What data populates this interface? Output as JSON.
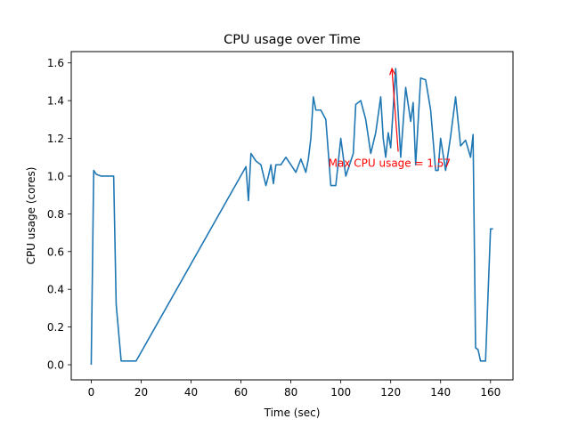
{
  "chart_data": {
    "type": "line",
    "title": "CPU usage over Time",
    "xlabel": "Time (sec)",
    "ylabel": "CPU usage (cores)",
    "xlim": [
      -8,
      169
    ],
    "ylim": [
      -0.08,
      1.66
    ],
    "xticks": [
      0,
      20,
      40,
      60,
      80,
      100,
      120,
      140,
      160
    ],
    "yticks": [
      0.0,
      0.2,
      0.4,
      0.6,
      0.8,
      1.0,
      1.2,
      1.4,
      1.6
    ],
    "ytick_labels": [
      "0.0",
      "0.2",
      "0.4",
      "0.6",
      "0.8",
      "1.0",
      "1.2",
      "1.4",
      "1.6"
    ],
    "grid": false,
    "line_color": "#1f77b4",
    "series": [
      {
        "x": [
          0,
          1,
          2,
          4,
          6,
          8,
          9,
          10,
          12,
          14,
          16,
          18,
          62,
          63,
          64,
          66,
          68,
          70,
          71,
          72,
          73,
          74,
          76,
          78,
          80,
          82,
          84,
          86,
          87,
          88,
          89,
          90,
          92,
          94,
          96,
          98,
          100,
          102,
          104,
          105,
          106,
          108,
          110,
          112,
          114,
          116,
          117,
          118,
          119,
          120,
          122,
          124,
          126,
          128,
          129,
          130,
          132,
          134,
          136,
          138,
          139,
          140,
          142,
          144,
          146,
          148,
          150,
          152,
          153,
          154,
          155,
          156,
          158,
          160,
          161
        ],
        "y": [
          0.0,
          1.03,
          1.01,
          1.0,
          1.0,
          1.0,
          1.0,
          0.32,
          0.02,
          0.02,
          0.02,
          0.02,
          1.05,
          0.87,
          1.12,
          1.08,
          1.06,
          0.95,
          1.0,
          1.06,
          0.96,
          1.06,
          1.06,
          1.1,
          1.06,
          1.02,
          1.09,
          1.02,
          1.09,
          1.2,
          1.42,
          1.35,
          1.35,
          1.3,
          0.95,
          0.95,
          1.2,
          1.0,
          1.08,
          1.12,
          1.38,
          1.4,
          1.3,
          1.12,
          1.23,
          1.42,
          1.2,
          1.1,
          1.23,
          1.15,
          1.57,
          1.1,
          1.47,
          1.29,
          1.39,
          1.06,
          1.52,
          1.51,
          1.35,
          1.03,
          1.03,
          1.2,
          1.03,
          1.21,
          1.42,
          1.16,
          1.19,
          1.1,
          1.22,
          0.09,
          0.08,
          0.02,
          0.02,
          0.72,
          0.72
        ]
      }
    ],
    "annotation": {
      "text": "Max CPU usage = 1.57",
      "xy": [
        120.5,
        1.57
      ],
      "xytext": [
        95,
        1.07
      ],
      "color": "#ff0000"
    }
  }
}
